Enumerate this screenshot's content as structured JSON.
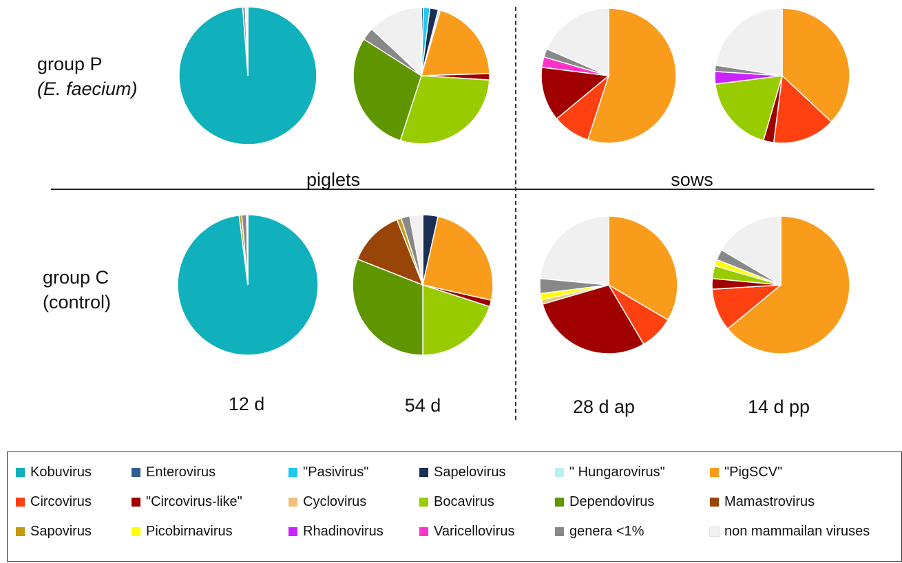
{
  "labels": {
    "group_p_line1": "group P",
    "group_p_line2": "(E. faecium)",
    "group_c_line1": "group C",
    "group_c_line2": "(control)",
    "piglets": "piglets",
    "sows": "sows",
    "col_12d": "12 d",
    "col_54d": "54 d",
    "col_28dap": "28 d ap",
    "col_14dpp": "14 d pp"
  },
  "legend": [
    {
      "name": "Kobuvirus",
      "color": "#10b0bc"
    },
    {
      "name": "Enterovirus",
      "color": "#2f5d8c"
    },
    {
      "name": "\"Pasivirus\"",
      "color": "#1fc8f0"
    },
    {
      "name": "Sapelovirus",
      "color": "#1a2f55"
    },
    {
      "name": "\" Hungarovirus\"",
      "color": "#b8f0f0"
    },
    {
      "name": "\"PigSCV\"",
      "color": "#f99c1c"
    },
    {
      "name": "Circovirus",
      "color": "#ff4010"
    },
    {
      "name": "\"Circovirus-like\"",
      "color": "#a00000"
    },
    {
      "name": "Cyclovirus",
      "color": "#f0c078"
    },
    {
      "name": "Bocavirus",
      "color": "#99cc00"
    },
    {
      "name": "Dependovirus",
      "color": "#5f9600"
    },
    {
      "name": "Mamastrovirus",
      "color": "#9a4508"
    },
    {
      "name": "Sapovirus",
      "color": "#c49a10"
    },
    {
      "name": "Picobirnavirus",
      "color": "#ffff00"
    },
    {
      "name": "Rhadinovirus",
      "color": "#cc22ff"
    },
    {
      "name": "Varicellovirus",
      "color": "#ff33cc"
    },
    {
      "name": "genera <1%",
      "color": "#888888"
    },
    {
      "name": "non mammailan viruses",
      "color": "#f0f0f0"
    }
  ],
  "chart_data": [
    {
      "type": "pie",
      "group": "group P (E. faecium)",
      "column": "12 d",
      "host": "piglets",
      "slices": [
        {
          "label": "Kobuvirus",
          "value": 98.8
        },
        {
          "label": "genera <1%",
          "value": 0.6
        },
        {
          "label": "non mammailan viruses",
          "value": 0.6
        }
      ]
    },
    {
      "type": "pie",
      "group": "group P (E. faecium)",
      "column": "54 d",
      "host": "piglets",
      "slices": [
        {
          "label": "Enterovirus",
          "value": 0.5
        },
        {
          "label": "\"Pasivirus\"",
          "value": 1.5
        },
        {
          "label": "Sapelovirus",
          "value": 2
        },
        {
          "label": "\" Hungarovirus\"",
          "value": 0.5
        },
        {
          "label": "\"PigSCV\"",
          "value": 20
        },
        {
          "label": "\"Circovirus-like\"",
          "value": 1.5
        },
        {
          "label": "Bocavirus",
          "value": 29
        },
        {
          "label": "Dependovirus",
          "value": 29
        },
        {
          "label": "genera <1%",
          "value": 3
        },
        {
          "label": "non mammailan viruses",
          "value": 13
        }
      ]
    },
    {
      "type": "pie",
      "group": "group P (E. faecium)",
      "column": "28 d ap",
      "host": "sows",
      "slices": [
        {
          "label": "\"PigSCV\"",
          "value": 55
        },
        {
          "label": "Circovirus",
          "value": 9
        },
        {
          "label": "\"Circovirus-like\"",
          "value": 13
        },
        {
          "label": "Varicellovirus",
          "value": 2.5
        },
        {
          "label": "genera <1%",
          "value": 2
        },
        {
          "label": "non mammailan viruses",
          "value": 18.5
        }
      ]
    },
    {
      "type": "pie",
      "group": "group P (E. faecium)",
      "column": "14 d pp",
      "host": "sows",
      "slices": [
        {
          "label": "\"PigSCV\"",
          "value": 37
        },
        {
          "label": "Circovirus",
          "value": 15
        },
        {
          "label": "\"Circovirus-like\"",
          "value": 2.5
        },
        {
          "label": "Bocavirus",
          "value": 18.5
        },
        {
          "label": "Rhadinovirus",
          "value": 3
        },
        {
          "label": "genera <1%",
          "value": 1.5
        },
        {
          "label": "non mammailan viruses",
          "value": 22.5
        }
      ]
    },
    {
      "type": "pie",
      "group": "group C (control)",
      "column": "12 d",
      "host": "piglets",
      "slices": [
        {
          "label": "Kobuvirus",
          "value": 98
        },
        {
          "label": "Sapovirus",
          "value": 0.6
        },
        {
          "label": "genera <1%",
          "value": 1.1
        },
        {
          "label": "non mammailan viruses",
          "value": 0.3
        }
      ]
    },
    {
      "type": "pie",
      "group": "group C (control)",
      "column": "54 d",
      "host": "piglets",
      "slices": [
        {
          "label": "Sapelovirus",
          "value": 3.5
        },
        {
          "label": "\"PigSCV\"",
          "value": 25
        },
        {
          "label": "\"Circovirus-like\"",
          "value": 1.5
        },
        {
          "label": "Bocavirus",
          "value": 20
        },
        {
          "label": "Dependovirus",
          "value": 31
        },
        {
          "label": "Mamastrovirus",
          "value": 13
        },
        {
          "label": "Sapovirus",
          "value": 1
        },
        {
          "label": "genera <1%",
          "value": 2
        },
        {
          "label": "non mammailan viruses",
          "value": 3
        }
      ]
    },
    {
      "type": "pie",
      "group": "group C (control)",
      "column": "28 d ap",
      "host": "sows",
      "slices": [
        {
          "label": "\"PigSCV\"",
          "value": 33.5
        },
        {
          "label": "Circovirus",
          "value": 8
        },
        {
          "label": "\"Circovirus-like\"",
          "value": 29
        },
        {
          "label": "Cyclovirus",
          "value": 1
        },
        {
          "label": "Picobirnavirus",
          "value": 1.5
        },
        {
          "label": "genera <1%",
          "value": 3.5
        },
        {
          "label": "non mammailan viruses",
          "value": 23.5
        }
      ]
    },
    {
      "type": "pie",
      "group": "group C (control)",
      "column": "14 d pp",
      "host": "sows",
      "slices": [
        {
          "label": "\"PigSCV\"",
          "value": 64
        },
        {
          "label": "Circovirus",
          "value": 10
        },
        {
          "label": "\"Circovirus-like\"",
          "value": 2.5
        },
        {
          "label": "Bocavirus",
          "value": 3
        },
        {
          "label": "Picobirnavirus",
          "value": 1.5
        },
        {
          "label": "genera <1%",
          "value": 2.5
        },
        {
          "label": "non mammailan viruses",
          "value": 16.5
        }
      ]
    }
  ]
}
